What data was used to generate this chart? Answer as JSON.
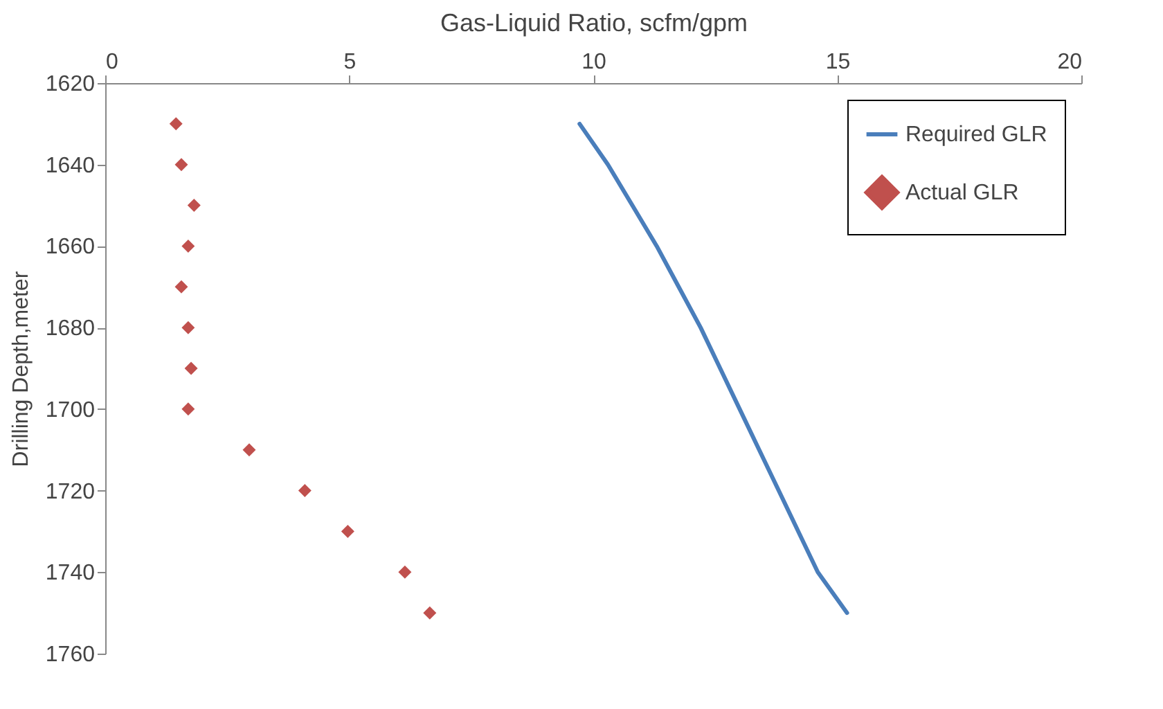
{
  "chart_data": {
    "type": "scatter",
    "xlabel": "Gas-Liquid Ratio, scfm/gpm",
    "ylabel": "Drilling Depth,meter",
    "xlim": [
      0,
      20
    ],
    "xticks": [
      0,
      5,
      10,
      15,
      20
    ],
    "ylim": [
      1760,
      1620
    ],
    "yticks": [
      1620,
      1640,
      1660,
      1680,
      1700,
      1720,
      1740,
      1760
    ],
    "grid": false,
    "legend": "top right",
    "series": [
      {
        "name": "Required GLR",
        "type": "line",
        "color": "#4a7ebb",
        "marker": "none",
        "x": [
          9.72,
          10.3,
          10.8,
          11.3,
          11.75,
          12.2,
          12.6,
          13.0,
          13.4,
          13.8,
          14.2,
          14.6,
          15.2
        ],
        "values": [
          1630,
          1640,
          1650,
          1660,
          1670,
          1680,
          1690,
          1700,
          1710,
          1720,
          1730,
          1740,
          1750
        ]
      },
      {
        "name": "Actual GLR",
        "color": "#c0504d",
        "marker": "diamond",
        "x": [
          1.45,
          1.56,
          1.82,
          1.7,
          1.56,
          1.7,
          1.76,
          1.7,
          2.95,
          4.09,
          4.97,
          6.14,
          6.65
        ],
        "values": [
          1630,
          1640,
          1650,
          1660,
          1670,
          1680,
          1690,
          1700,
          1710,
          1720,
          1730,
          1740,
          1750
        ]
      }
    ]
  }
}
